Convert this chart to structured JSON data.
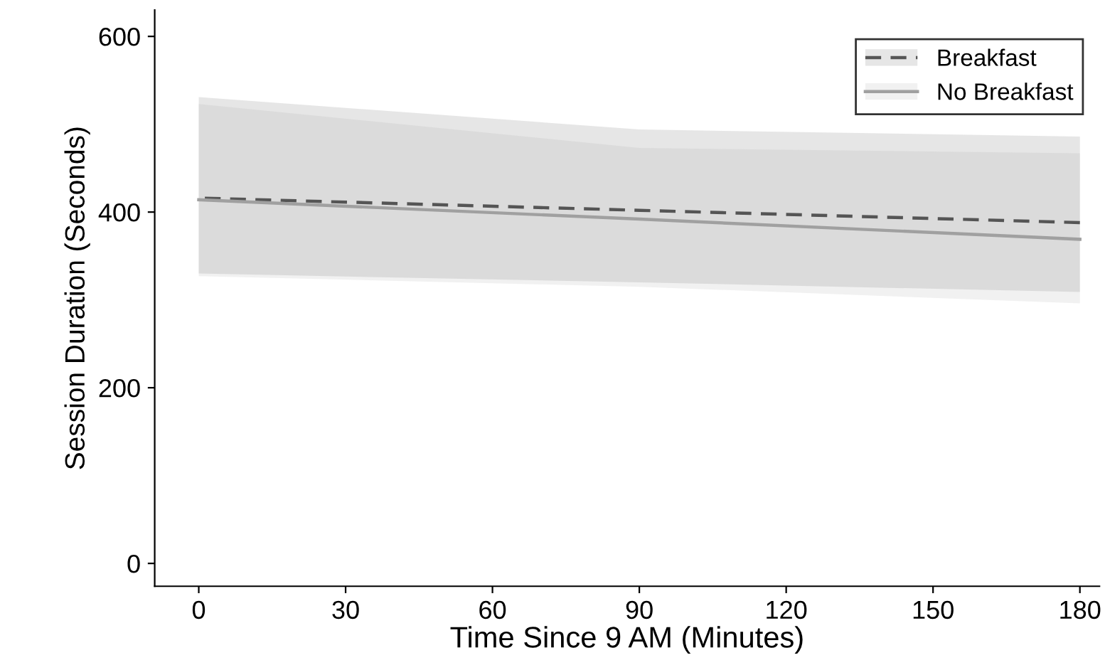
{
  "chart_data": {
    "type": "line",
    "xlabel": "Time Since 9 AM (Minutes)",
    "ylabel": "Session Duration (Seconds)",
    "xlim": [
      -9,
      184
    ],
    "ylim": [
      -26,
      630
    ],
    "xticks": [
      0,
      30,
      60,
      90,
      120,
      150,
      180
    ],
    "yticks": [
      0,
      200,
      400,
      600
    ],
    "grid": false,
    "legend": "top right",
    "marker": "none",
    "series": [
      {
        "name": "Breakfast",
        "color": "#555555",
        "line_style": "dashed",
        "x": [
          0,
          90,
          180
        ],
        "values": [
          416,
          402,
          388
        ],
        "lower": [
          330,
          320,
          309
        ],
        "upper": [
          531,
          494,
          486
        ]
      },
      {
        "name": "No Breakfast",
        "color": "#a0a0a0",
        "line_style": "solid",
        "x": [
          0,
          90,
          180
        ],
        "values": [
          414,
          392,
          369
        ],
        "lower": [
          327,
          315,
          296
        ],
        "upper": [
          523,
          473,
          467
        ]
      }
    ]
  }
}
